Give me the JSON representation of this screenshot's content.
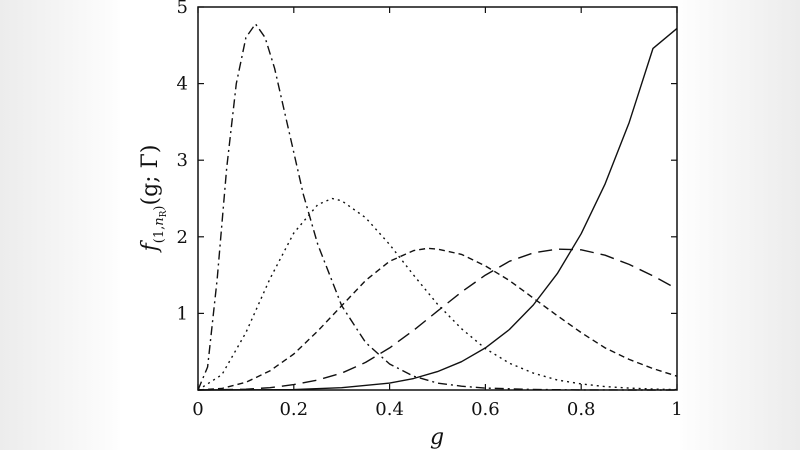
{
  "chart_data": {
    "type": "line",
    "title": "",
    "xlabel": "g",
    "ylabel": {
      "main": "f",
      "sub_open": "(1,",
      "sub_n": "n",
      "sub_R": "R",
      "sub_close": ")",
      "args": "(g; Γ)"
    },
    "xlim": [
      0,
      1
    ],
    "ylim": [
      0,
      5
    ],
    "x_ticks": [
      "0",
      "0.2",
      "0.4",
      "0.6",
      "0.8",
      "1"
    ],
    "x_tick_values": [
      0,
      0.2,
      0.4,
      0.6,
      0.8,
      1
    ],
    "y_ticks": [
      "1",
      "2",
      "3",
      "4",
      "5"
    ],
    "y_tick_values": [
      1,
      2,
      3,
      4,
      5
    ],
    "grid": false,
    "legend": "none",
    "series": [
      {
        "style": "dash-dot",
        "x": [
          0,
          0.02,
          0.04,
          0.06,
          0.08,
          0.1,
          0.12,
          0.14,
          0.16,
          0.18,
          0.2,
          0.22,
          0.25,
          0.3,
          0.35,
          0.4,
          0.45,
          0.5,
          0.55,
          0.6,
          0.7,
          0.8,
          0.9,
          1.0
        ],
        "y": [
          0,
          0.3,
          1.45,
          2.9,
          4.0,
          4.6,
          4.78,
          4.6,
          4.2,
          3.65,
          3.1,
          2.55,
          1.9,
          1.1,
          0.62,
          0.34,
          0.18,
          0.09,
          0.05,
          0.025,
          0.006,
          0.001,
          0,
          0
        ]
      },
      {
        "style": "dotted",
        "x": [
          0,
          0.05,
          0.1,
          0.15,
          0.2,
          0.25,
          0.28,
          0.3,
          0.35,
          0.4,
          0.45,
          0.5,
          0.55,
          0.6,
          0.65,
          0.7,
          0.75,
          0.8,
          0.85,
          0.9,
          0.95,
          1.0
        ],
        "y": [
          0,
          0.2,
          0.75,
          1.45,
          2.05,
          2.42,
          2.5,
          2.47,
          2.25,
          1.9,
          1.5,
          1.12,
          0.8,
          0.54,
          0.35,
          0.22,
          0.13,
          0.08,
          0.045,
          0.025,
          0.012,
          0.005
        ]
      },
      {
        "style": "short-dash",
        "x": [
          0,
          0.05,
          0.1,
          0.15,
          0.2,
          0.25,
          0.3,
          0.35,
          0.4,
          0.45,
          0.48,
          0.5,
          0.55,
          0.6,
          0.65,
          0.7,
          0.75,
          0.8,
          0.85,
          0.9,
          0.95,
          1.0
        ],
        "y": [
          0,
          0.02,
          0.1,
          0.25,
          0.47,
          0.77,
          1.1,
          1.43,
          1.68,
          1.82,
          1.85,
          1.84,
          1.77,
          1.62,
          1.43,
          1.2,
          0.97,
          0.75,
          0.55,
          0.4,
          0.28,
          0.18
        ]
      },
      {
        "style": "long-dash",
        "x": [
          0,
          0.1,
          0.15,
          0.2,
          0.25,
          0.3,
          0.35,
          0.4,
          0.45,
          0.5,
          0.55,
          0.6,
          0.65,
          0.7,
          0.75,
          0.8,
          0.85,
          0.9,
          0.95,
          1.0
        ],
        "y": [
          0,
          0.01,
          0.03,
          0.07,
          0.13,
          0.22,
          0.36,
          0.55,
          0.78,
          1.03,
          1.28,
          1.5,
          1.68,
          1.79,
          1.84,
          1.83,
          1.76,
          1.64,
          1.49,
          1.32
        ]
      },
      {
        "style": "solid",
        "x": [
          0,
          0.2,
          0.3,
          0.4,
          0.45,
          0.5,
          0.55,
          0.6,
          0.65,
          0.7,
          0.75,
          0.8,
          0.85,
          0.9,
          0.95,
          1.0
        ],
        "y": [
          0,
          0.005,
          0.03,
          0.09,
          0.15,
          0.24,
          0.37,
          0.55,
          0.79,
          1.11,
          1.52,
          2.04,
          2.69,
          3.49,
          4.46,
          4.72
        ]
      }
    ]
  }
}
